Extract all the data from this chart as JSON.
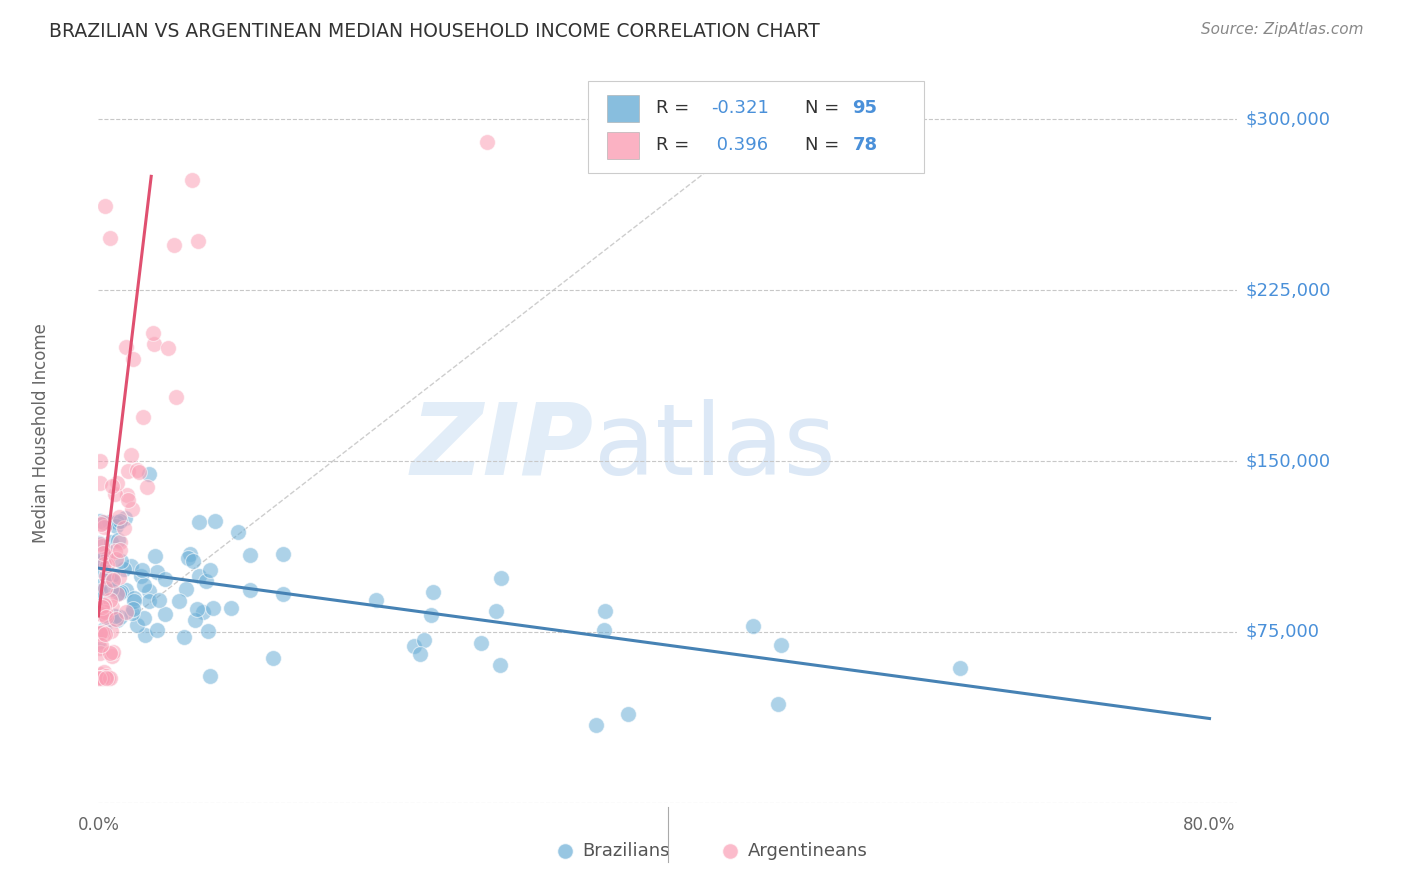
{
  "title": "BRAZILIAN VS ARGENTINEAN MEDIAN HOUSEHOLD INCOME CORRELATION CHART",
  "source": "Source: ZipAtlas.com",
  "ylabel": "Median Household Income",
  "yticks": [
    0,
    75000,
    150000,
    225000,
    300000
  ],
  "ytick_labels": [
    "",
    "$75,000",
    "$150,000",
    "$225,000",
    "$300,000"
  ],
  "ylim": [
    0,
    325000
  ],
  "xlim": [
    0.0,
    0.82
  ],
  "brazil_R": -0.321,
  "brazil_N": 95,
  "arg_R": 0.396,
  "arg_N": 78,
  "brazil_scatter_color": "#6baed6",
  "arg_scatter_color": "#fa9fb5",
  "trendline_brazil_color": "#4682B4",
  "trendline_arg_color": "#e05070",
  "trendline_diag_color": "#c8c8c8",
  "legend_label_brazil": "Brazilians",
  "legend_label_arg": "Argentineans",
  "background_color": "#ffffff",
  "grid_color": "#c8c8c8",
  "title_color": "#333333",
  "ytick_color": "#4a90d9",
  "source_color": "#888888",
  "legend_R_color": "#333333",
  "legend_neg_color": "#4a90d9",
  "legend_pos_color": "#4a90d9",
  "legend_N_color": "#4a90d9"
}
